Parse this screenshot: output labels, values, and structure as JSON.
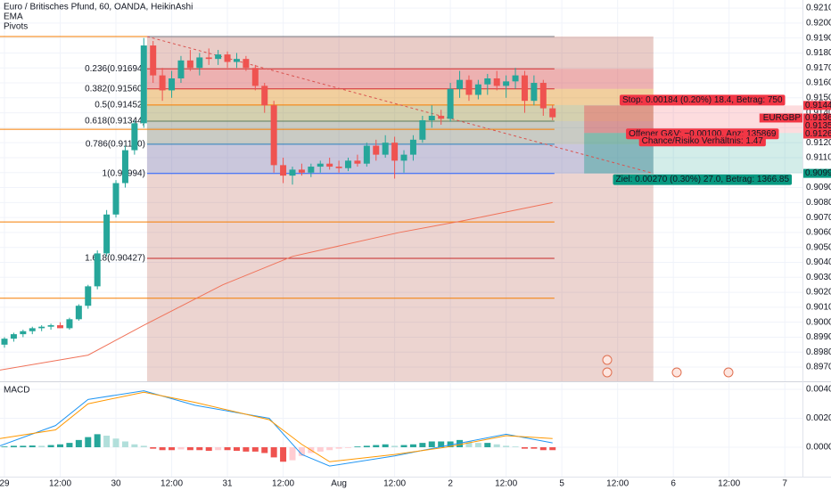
{
  "header": {
    "title": "Euro / Britisches Pfund, 60, OANDA, HeikinAshi",
    "indicators": [
      "EMA",
      "Pivots"
    ]
  },
  "chart_data": [
    {
      "type": "candlestick",
      "symbol": "EURGBP",
      "up_color": "#26a69a",
      "down_color": "#ef5350",
      "x": [
        0,
        2,
        4,
        6,
        8,
        10,
        12,
        14,
        16,
        18,
        20,
        22,
        24,
        26,
        28,
        30,
        32,
        34,
        36,
        38,
        40,
        42,
        44,
        46,
        48,
        50,
        52,
        54,
        56,
        58,
        60,
        62,
        64,
        66,
        68,
        70,
        72,
        74,
        76,
        78,
        80,
        82,
        84,
        86,
        88,
        90,
        92,
        94,
        96,
        98,
        100,
        102,
        104,
        106,
        108,
        110,
        112,
        114,
        116,
        118
      ],
      "open": [
        0.8985,
        0.8989,
        0.8992,
        0.8994,
        0.8996,
        0.8997,
        0.8998,
        0.8996,
        0.9002,
        0.9011,
        0.9024,
        0.9046,
        0.9072,
        0.9093,
        0.9115,
        0.9133,
        0.9185,
        0.9165,
        0.9155,
        0.9163,
        0.9175,
        0.917,
        0.9177,
        0.9176,
        0.9179,
        0.9174,
        0.9176,
        0.917,
        0.9158,
        0.9145,
        0.9105,
        0.9098,
        0.9102,
        0.91,
        0.9104,
        0.9106,
        0.9104,
        0.9103,
        0.9108,
        0.9106,
        0.9118,
        0.9112,
        0.912,
        0.9108,
        0.9112,
        0.9122,
        0.9135,
        0.9138,
        0.9136,
        0.9156,
        0.9162,
        0.9152,
        0.9159,
        0.9163,
        0.9158,
        0.9161,
        0.9165,
        0.9148,
        0.916,
        0.9143
      ],
      "high": [
        0.899,
        0.8993,
        0.8995,
        0.8997,
        0.8998,
        0.8999,
        0.9,
        0.9003,
        0.9012,
        0.9025,
        0.9048,
        0.9075,
        0.9095,
        0.9118,
        0.9135,
        0.919,
        0.9188,
        0.917,
        0.9168,
        0.9178,
        0.9182,
        0.918,
        0.9183,
        0.9182,
        0.9181,
        0.918,
        0.9178,
        0.9172,
        0.916,
        0.9148,
        0.911,
        0.9104,
        0.9106,
        0.9106,
        0.9108,
        0.911,
        0.9108,
        0.911,
        0.9112,
        0.912,
        0.9122,
        0.9125,
        0.9124,
        0.9115,
        0.9125,
        0.9138,
        0.9145,
        0.9142,
        0.916,
        0.9168,
        0.9165,
        0.9162,
        0.9166,
        0.9168,
        0.9165,
        0.917,
        0.9168,
        0.9165,
        0.9162,
        0.9145
      ],
      "low": [
        0.8983,
        0.8987,
        0.899,
        0.8992,
        0.8994,
        0.8995,
        0.8996,
        0.8995,
        0.9001,
        0.9009,
        0.9022,
        0.9044,
        0.907,
        0.909,
        0.9112,
        0.913,
        0.916,
        0.9148,
        0.915,
        0.916,
        0.9168,
        0.9165,
        0.9172,
        0.9172,
        0.917,
        0.917,
        0.9168,
        0.9155,
        0.914,
        0.91,
        0.9093,
        0.9092,
        0.9098,
        0.9097,
        0.91,
        0.9102,
        0.91,
        0.9101,
        0.9104,
        0.9104,
        0.9108,
        0.911,
        0.9096,
        0.91,
        0.9108,
        0.912,
        0.913,
        0.9132,
        0.9134,
        0.915,
        0.9148,
        0.9149,
        0.9152,
        0.9155,
        0.915,
        0.9156,
        0.914,
        0.9145,
        0.9138,
        0.9135
      ],
      "close": [
        0.8989,
        0.8992,
        0.8994,
        0.8996,
        0.8997,
        0.8998,
        0.8996,
        0.9002,
        0.9011,
        0.9024,
        0.9046,
        0.9072,
        0.9093,
        0.9115,
        0.9133,
        0.9185,
        0.9165,
        0.9155,
        0.9163,
        0.9175,
        0.917,
        0.9177,
        0.9176,
        0.9179,
        0.9174,
        0.9176,
        0.917,
        0.9158,
        0.9145,
        0.9105,
        0.9098,
        0.9102,
        0.91,
        0.9104,
        0.9106,
        0.9104,
        0.9103,
        0.9108,
        0.9106,
        0.9118,
        0.9112,
        0.912,
        0.9108,
        0.9112,
        0.9122,
        0.9135,
        0.9138,
        0.9136,
        0.9156,
        0.9162,
        0.9152,
        0.9159,
        0.9163,
        0.9158,
        0.9161,
        0.9165,
        0.9148,
        0.916,
        0.9143,
        0.9137
      ],
      "ema": {
        "color": "#f0735a",
        "x": [
          -0.96,
          18,
          30,
          47,
          62,
          85,
          99,
          118
        ],
        "values": [
          0.8968,
          0.8978,
          0.8998,
          0.9025,
          0.9044,
          0.906,
          0.9068,
          0.908
        ]
      },
      "xlim": [
        -0.96,
        171.8
      ],
      "xticks": [
        {
          "value": 0,
          "label": "29"
        },
        {
          "value": 12,
          "label": "12:00"
        },
        {
          "value": 24,
          "label": "30"
        },
        {
          "value": 36,
          "label": "12:00"
        },
        {
          "value": 48,
          "label": "31"
        },
        {
          "value": 60,
          "label": "12:00"
        },
        {
          "value": 72,
          "label": "Aug"
        },
        {
          "value": 84,
          "label": "12:00"
        },
        {
          "value": 96,
          "label": "2"
        },
        {
          "value": 108,
          "label": "12:00"
        },
        {
          "value": 120,
          "label": "5"
        },
        {
          "value": 132,
          "label": "12:00"
        },
        {
          "value": 144,
          "label": "6"
        },
        {
          "value": 156,
          "label": "12:00"
        },
        {
          "value": 168,
          "label": "7"
        }
      ],
      "ylim": [
        0.89605,
        0.92154
      ],
      "yticks": [
        {
          "value": 0.921,
          "label": "0.92100"
        },
        {
          "value": 0.92,
          "label": "0.92000"
        },
        {
          "value": 0.919,
          "label": "0.91900"
        },
        {
          "value": 0.918,
          "label": "0.91800"
        },
        {
          "value": 0.917,
          "label": "0.91700"
        },
        {
          "value": 0.916,
          "label": "0.91600"
        },
        {
          "value": 0.915,
          "label": "0.91500"
        },
        {
          "value": 0.914,
          "label": "0.91400"
        },
        {
          "value": 0.913,
          "label": "0.91300"
        },
        {
          "value": 0.912,
          "label": "0.91200"
        },
        {
          "value": 0.911,
          "label": "0.91100"
        },
        {
          "value": 0.91,
          "label": "0.91000"
        },
        {
          "value": 0.909,
          "label": "0.90900"
        },
        {
          "value": 0.908,
          "label": "0.90800"
        },
        {
          "value": 0.907,
          "label": "0.90700"
        },
        {
          "value": 0.906,
          "label": "0.90600"
        },
        {
          "value": 0.905,
          "label": "0.90500"
        },
        {
          "value": 0.904,
          "label": "0.90400"
        },
        {
          "value": 0.903,
          "label": "0.90300"
        },
        {
          "value": 0.902,
          "label": "0.90200"
        },
        {
          "value": 0.901,
          "label": "0.90100"
        },
        {
          "value": 0.9,
          "label": "0.90000"
        },
        {
          "value": 0.899,
          "label": "0.89900"
        },
        {
          "value": 0.898,
          "label": "0.89800"
        },
        {
          "value": 0.897,
          "label": "0.89700"
        }
      ],
      "grid": true,
      "pivots": [
        {
          "value": 0.9191,
          "x": [
            -0.96,
            118.4
          ],
          "color": "#f57c00"
        },
        {
          "value": 0.9129,
          "x": [
            -0.96,
            118.4
          ],
          "color": "#f57c00"
        },
        {
          "value": 0.9067,
          "x": [
            -0.96,
            118.4
          ],
          "color": "#f57c00"
        },
        {
          "value": 0.9016,
          "x": [
            -0.96,
            118.4
          ],
          "color": "#f57c00"
        }
      ],
      "fib": {
        "x": [
          30.7,
          139.7
        ],
        "line_end": 118.4,
        "rect_color": "rgba(170,60,40,0.22)",
        "levels": [
          {
            "price": 0.9191,
            "color": "#787b86"
          },
          {
            "price": 0.91694,
            "label": "0.236(0.91694)",
            "color": "#d32f2f",
            "fill": "rgba(170,60,40,0.05)"
          },
          {
            "price": 0.9156,
            "label": "0.382(0.91560)",
            "color": "#d32f2f",
            "fill": "rgba(242,54,69,0.22)"
          },
          {
            "price": 0.91452,
            "label": "0.5(0.91452)",
            "color": "#f57c00",
            "fill": "rgba(255,193,7,0.25)"
          },
          {
            "price": 0.91344,
            "label": "0.618(0.91344)",
            "color": "#607d5b",
            "fill": "rgba(139,195,74,0.25)"
          },
          {
            "price": 0.9119,
            "label": "0.786(0.91190)",
            "color": "#2a7fbd",
            "fill": "rgba(8,153,129,0.15)"
          },
          {
            "price": 0.90994,
            "label": "1(0.90994)",
            "color": "#2962ff",
            "fill": "rgba(100,160,255,0.25)"
          },
          {
            "price": 0.90427,
            "label": "1.618(0.90427)",
            "color": "#c62828"
          }
        ]
      },
      "trendline": {
        "x": [
          30.7,
          139.7
        ],
        "values": [
          0.9191,
          0.90995
        ],
        "color": "#d9534f"
      },
      "position": {
        "x": [
          124.8,
          139.7
        ],
        "stop": 0.91449,
        "entry": 0.91265,
        "target": 0.90995,
        "stop_color": "rgba(242,54,69,0.35)",
        "target_color": "rgba(8,153,129,0.35)",
        "stop_label": "Stop: 0.00184 (0.20%) 18.4, Betrag: 750",
        "pnl_label": "Offener G&V: −0.00100, Anz: 135869",
        "rr_label": "Chance/Risiko Verhältnis: 1.47",
        "target_label": "Ziel: 0.00270 (0.30%) 27.0, Betrag: 1366.85"
      },
      "badges": [
        {
          "value": 0.91449,
          "label": "0.91449",
          "color": "#f23645"
        },
        {
          "value": 0.91365,
          "label": "0.91365",
          "tag": "EURGBP",
          "color": "#f23645"
        },
        {
          "value": 0.91355,
          "label": "0.91355",
          "color": "#f23645"
        },
        {
          "value": 0.91265,
          "label": "0.91265",
          "color": "#f23645"
        },
        {
          "value": 0.90995,
          "label": "0.90995",
          "color": "#089981"
        }
      ]
    },
    {
      "type": "macd",
      "title": "MACD",
      "histogram": {
        "colors": [
          "#26a69a",
          "#b2dfdb",
          "#ffcdd2",
          "#ef5350"
        ],
        "values": [
          5e-05,
          0.0001,
          0.0001,
          0.00012,
          0.0001,
          0.00015,
          0.0002,
          0.0003,
          0.0005,
          0.0007,
          0.0009,
          0.0008,
          0.0006,
          0.0004,
          0.0002,
          0.0001,
          -0.0001,
          -0.0002,
          -0.0002,
          -0.00015,
          -0.0002,
          -0.0002,
          -0.00025,
          -0.0002,
          -0.0002,
          -0.00025,
          -0.0003,
          -0.0003,
          -0.0004,
          -0.0007,
          -0.001,
          -0.0009,
          -0.0006,
          -0.0004,
          -0.0003,
          -0.0002,
          -0.0001,
          -5e-05,
          5e-05,
          0.0001,
          0.00015,
          0.0002,
          0.0001,
          0.00015,
          0.0002,
          0.0003,
          0.0004,
          0.0004,
          0.0004,
          0.0005,
          0.0004,
          0.0003,
          0.0003,
          0.0002,
          0.0001,
          5e-05,
          -0.0001,
          -0.0001,
          -0.0002,
          -0.0002
        ]
      },
      "x": [
        -0.96,
        11,
        18,
        30,
        41,
        57,
        64,
        70,
        84,
        95,
        108,
        118
      ],
      "series": [
        {
          "color": "#2196f3",
          "values": [
            0.0001,
            0.0015,
            0.0033,
            0.0039,
            0.0029,
            0.002,
            -0.0005,
            -0.0013,
            -0.0006,
            0.0001,
            0.0009,
            0.0003
          ]
        },
        {
          "color": "#ff9800",
          "values": [
            0.0006,
            0.0012,
            0.003,
            0.0038,
            0.0031,
            0.0019,
            0.0002,
            -0.001,
            -0.0005,
            0,
            0.0008,
            0.0006
          ]
        }
      ],
      "ylim": [
        -0.00203,
        0.00443
      ],
      "yticks": [
        {
          "value": 0.004,
          "label": "0.00400"
        },
        {
          "value": 0.002,
          "label": "0.00200"
        },
        {
          "value": 0,
          "label": "0.00000"
        }
      ]
    }
  ]
}
